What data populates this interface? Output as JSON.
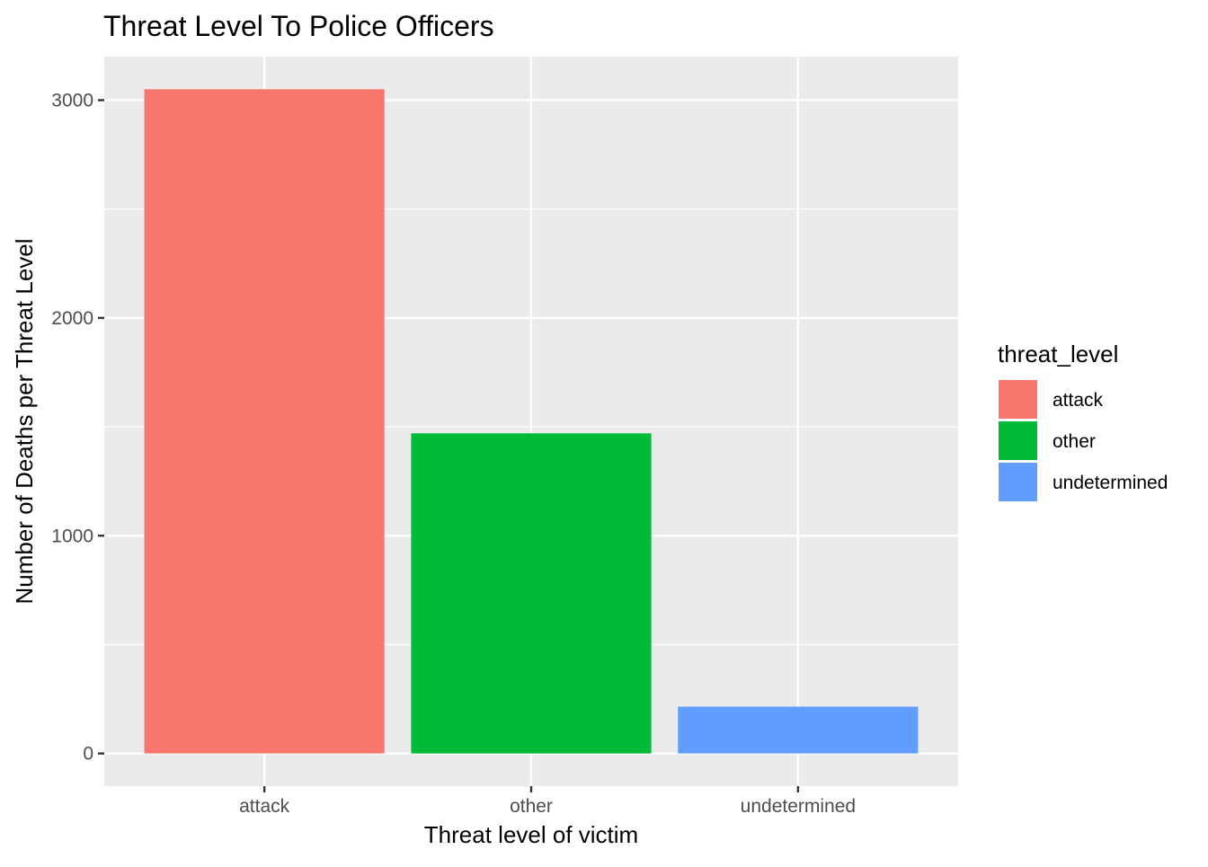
{
  "chart_data": {
    "type": "bar",
    "title": "Threat Level To Police Officers",
    "xlabel": "Threat level of victim",
    "ylabel": "Number of Deaths per Threat Level",
    "categories": [
      "attack",
      "other",
      "undetermined"
    ],
    "values": [
      3050,
      1470,
      215
    ],
    "colors": [
      "#F8766D",
      "#00BA38",
      "#619CFF"
    ],
    "ylim": [
      -150,
      3200
    ],
    "yticks": [
      0,
      1000,
      2000,
      3000
    ],
    "grid": true,
    "legend": {
      "title": "threat_level",
      "position": "right",
      "items": [
        "attack",
        "other",
        "undetermined"
      ]
    }
  }
}
